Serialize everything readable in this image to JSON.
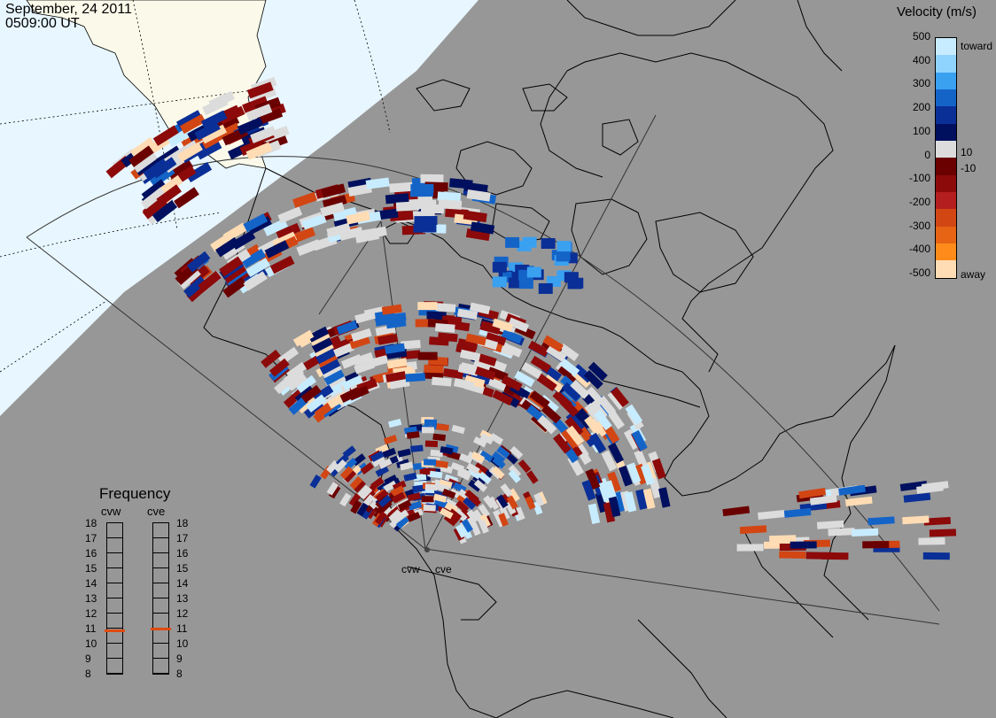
{
  "header": {
    "date": "September, 24 2011",
    "time": "0509:00 UT"
  },
  "velocity_scale": {
    "title": "Velocity (m/s)",
    "ticks": [
      "500",
      "400",
      "300",
      "200",
      "100",
      "0",
      "-100",
      "-200",
      "-300",
      "-400",
      "-500"
    ],
    "inner_ticks": [
      "10",
      "-10"
    ],
    "toward_label": "toward",
    "away_label": "away",
    "colors": [
      "#c8ecff",
      "#8fd3ff",
      "#3aa0f0",
      "#1464c8",
      "#0a2f96",
      "#00105e",
      "#dcdcdc",
      "#6a0000",
      "#8c0a0a",
      "#b41e1e",
      "#d24614",
      "#e66414",
      "#ff8c1a",
      "#ffdcb4"
    ]
  },
  "frequency": {
    "title": "Frequency",
    "radars": [
      "cvw",
      "cve"
    ],
    "levels": [
      "18",
      "17",
      "16",
      "15",
      "14",
      "13",
      "12",
      "11",
      "10",
      "9",
      "8"
    ],
    "cvw_mhz": 10.9,
    "cve_mhz": 11.0,
    "marker_color": "#e04a10"
  },
  "radar_labels": [
    "cvw",
    "cve"
  ],
  "colors": {
    "ocean": "#979797",
    "land_sunlit": "#fbfaea",
    "ocean_sunlit": "#e8f6ff",
    "coast": "#000000"
  }
}
